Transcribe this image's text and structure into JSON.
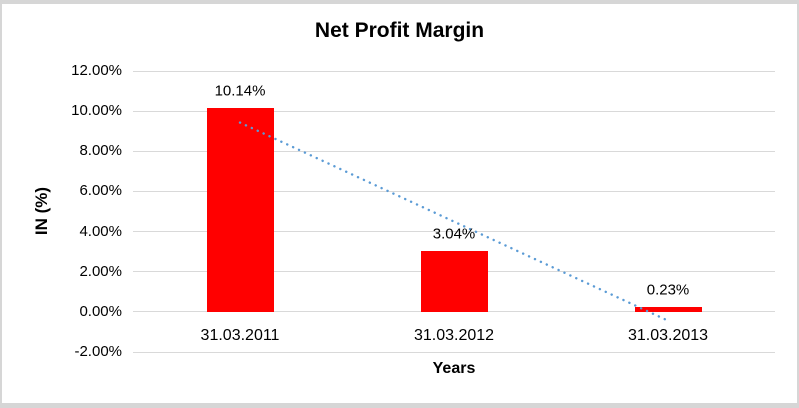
{
  "chart_data": {
    "type": "bar",
    "title": "Net Profit Margin",
    "xlabel": "Years",
    "ylabel": "IN (%)",
    "categories": [
      "31.03.2011",
      "31.03.2012",
      "31.03.2013"
    ],
    "values": [
      10.14,
      3.04,
      0.23
    ],
    "data_labels": [
      "10.14%",
      "3.04%",
      "0.23%"
    ],
    "value_suffix": "%",
    "ylim": [
      -2,
      12
    ],
    "y_tick_values": [
      12,
      10,
      8,
      6,
      4,
      2,
      0,
      -2
    ],
    "y_tick_labels": [
      "12.00%",
      "10.00%",
      "8.00%",
      "6.00%",
      "4.00%",
      "2.00%",
      "0.00%",
      "-2.00%"
    ],
    "grid": "horizontal",
    "legend": "none",
    "bar_color": "#ff0000",
    "trendline": {
      "type": "linear",
      "line_style": "dotted",
      "color": "#5b9bd5",
      "from_category": "31.03.2011",
      "to_category": "31.03.2013",
      "start_value": 9.43,
      "end_value": -0.44
    },
    "style": {
      "grid_color": "#d9d9d9",
      "text_color": "#000000",
      "frame_border_color": "#d6d6d6",
      "background": "#ffffff"
    }
  }
}
